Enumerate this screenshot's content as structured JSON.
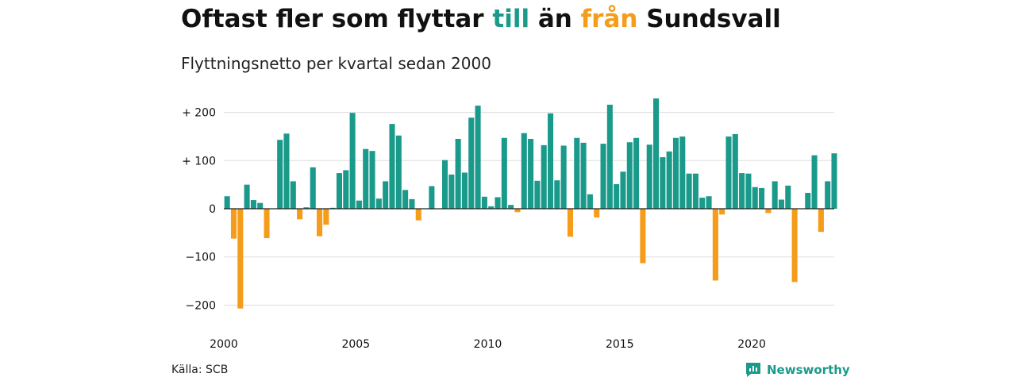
{
  "title": {
    "part1": "Oftast fler som flyttar ",
    "part2": "till",
    "part3": " än ",
    "part4": "från",
    "part5": " Sundsvall"
  },
  "subtitle": "Flyttningsnetto per kvartal sedan 2000",
  "source": "Källa: SCB",
  "brand": "Newsworthy",
  "colors": {
    "positive": "#1a9a8a",
    "negative": "#f59c1a",
    "grid": "#dddddd",
    "axis": "#222222"
  },
  "chart_data": {
    "type": "bar",
    "ylim": [
      -230,
      230
    ],
    "yticks": [
      {
        "value": 200,
        "label": "+ 200"
      },
      {
        "value": 100,
        "label": "+ 100"
      },
      {
        "value": 0,
        "label": "0"
      },
      {
        "value": -100,
        "label": "−100"
      },
      {
        "value": -200,
        "label": "−200"
      }
    ],
    "xticks": [
      "2000",
      "2005",
      "2010",
      "2015",
      "2020"
    ],
    "start_year": 2000,
    "values": [
      26,
      -62,
      -207,
      50,
      18,
      12,
      -61,
      0,
      143,
      156,
      57,
      -22,
      3,
      86,
      -57,
      -33,
      2,
      74,
      80,
      199,
      17,
      124,
      120,
      21,
      57,
      176,
      152,
      39,
      20,
      -24,
      0,
      47,
      0,
      101,
      71,
      145,
      75,
      189,
      214,
      25,
      5,
      24,
      147,
      8,
      -7,
      157,
      145,
      58,
      132,
      198,
      59,
      131,
      -58,
      147,
      137,
      30,
      -18,
      135,
      216,
      51,
      77,
      138,
      147,
      -113,
      133,
      229,
      107,
      119,
      147,
      150,
      73,
      73,
      23,
      26,
      -149,
      -12,
      150,
      155,
      74,
      73,
      45,
      43,
      -9,
      57,
      19,
      48,
      -152,
      0,
      33,
      111,
      -48,
      57,
      115
    ]
  }
}
